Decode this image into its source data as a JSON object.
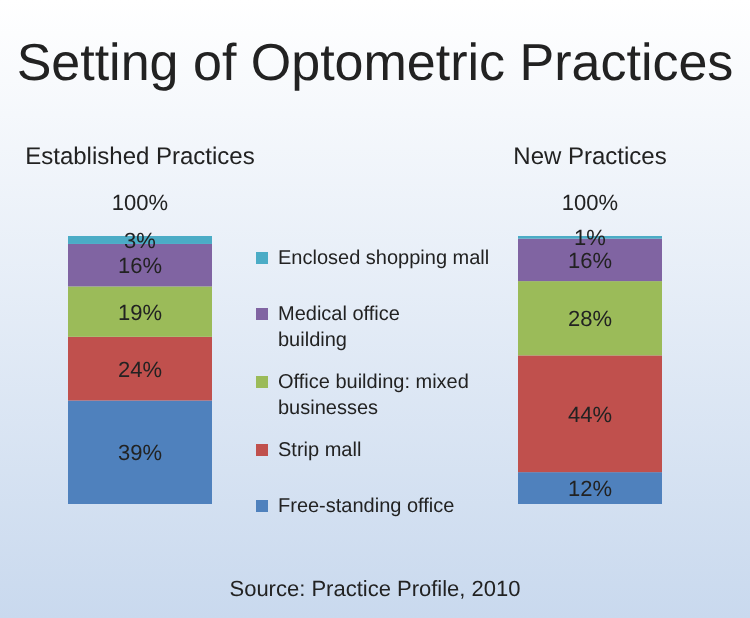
{
  "chart_data": {
    "type": "bar",
    "stacked": true,
    "title": "Setting of Optometric Practices",
    "categories": [
      "Established Practices",
      "New Practices"
    ],
    "series": [
      {
        "name": "Free-standing office",
        "color": "#4f81bd",
        "values": [
          39,
          12
        ],
        "value_labels": [
          "39%",
          "12%"
        ]
      },
      {
        "name": "Strip mall",
        "color": "#c0504d",
        "values": [
          24,
          44
        ],
        "value_labels": [
          "24%",
          "44%"
        ]
      },
      {
        "name": "Office building: mixed businesses",
        "color": "#9bbb59",
        "values": [
          19,
          28
        ],
        "value_labels": [
          "19%",
          "28%"
        ]
      },
      {
        "name": "Medical office building",
        "color": "#8064a2",
        "values": [
          16,
          16
        ],
        "value_labels": [
          "16%",
          "16%"
        ]
      },
      {
        "name": "Enclosed shopping mall",
        "color": "#4bacc6",
        "values": [
          3,
          1
        ],
        "value_labels": [
          "3%",
          "1%"
        ]
      }
    ],
    "totals": [
      "100%",
      "100%"
    ],
    "legend": "center",
    "annotations": [
      "Source: Practice Profile, 2010"
    ]
  }
}
